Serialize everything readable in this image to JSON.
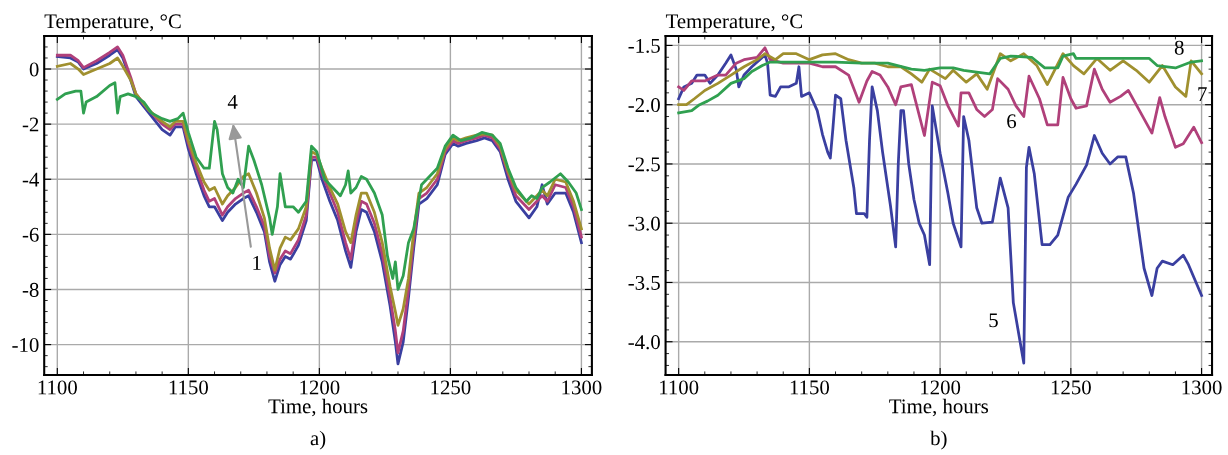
{
  "chart_data": [
    {
      "type": "line",
      "ylabel": "Temperature, °C",
      "xlabel": "Time, hours",
      "xlim": [
        1095,
        1304
      ],
      "xticks": [
        1100,
        1150,
        1200,
        1250,
        1300
      ],
      "ylim": [
        -11.1,
        1.2
      ],
      "yticks": [
        0,
        -2,
        -4,
        -6,
        -8,
        -10
      ],
      "grid": true,
      "legend": false,
      "annotations": [
        "1",
        "4",
        "a)"
      ],
      "series": [
        {
          "color": "#3a3fa0",
          "x": [
            1100,
            1105,
            1108,
            1110,
            1115,
            1120,
            1123,
            1125,
            1128,
            1130,
            1135,
            1140,
            1143,
            1145,
            1148,
            1150,
            1153,
            1156,
            1158,
            1160,
            1163,
            1165,
            1168,
            1171,
            1173,
            1176,
            1179,
            1181,
            1183,
            1185,
            1187,
            1189,
            1192,
            1195,
            1197,
            1199,
            1201,
            1204,
            1207,
            1210,
            1212,
            1214,
            1216,
            1218,
            1221,
            1224,
            1227,
            1229,
            1230,
            1232,
            1234,
            1236,
            1238,
            1241,
            1245,
            1248,
            1251,
            1253,
            1256,
            1260,
            1263,
            1266,
            1269,
            1272,
            1275,
            1280,
            1283,
            1285,
            1287,
            1290,
            1294,
            1297,
            1300
          ],
          "values": [
            0.45,
            0.4,
            0.25,
            0.0,
            0.2,
            0.5,
            0.7,
            0.4,
            -0.4,
            -1.0,
            -1.6,
            -2.2,
            -2.4,
            -2.1,
            -2.1,
            -2.9,
            -3.8,
            -4.6,
            -5.0,
            -5.0,
            -5.5,
            -5.2,
            -4.9,
            -4.7,
            -4.6,
            -5.2,
            -5.9,
            -7.0,
            -7.7,
            -7.1,
            -6.8,
            -6.9,
            -6.4,
            -5.5,
            -3.3,
            -3.3,
            -4.0,
            -4.8,
            -5.5,
            -6.6,
            -7.2,
            -5.9,
            -5.1,
            -5.2,
            -5.9,
            -7.0,
            -8.6,
            -9.9,
            -10.7,
            -9.9,
            -8.3,
            -6.5,
            -4.9,
            -4.7,
            -4.2,
            -3.1,
            -2.7,
            -2.8,
            -2.7,
            -2.6,
            -2.5,
            -2.6,
            -3.0,
            -4.0,
            -4.8,
            -5.4,
            -5.0,
            -4.2,
            -4.9,
            -4.5,
            -4.5,
            -5.2,
            -6.3
          ]
        },
        {
          "color": "#b0407a",
          "x": [
            1100,
            1105,
            1108,
            1110,
            1115,
            1120,
            1123,
            1125,
            1128,
            1130,
            1135,
            1140,
            1143,
            1145,
            1148,
            1150,
            1153,
            1156,
            1158,
            1160,
            1163,
            1165,
            1168,
            1171,
            1173,
            1176,
            1179,
            1181,
            1183,
            1185,
            1187,
            1189,
            1192,
            1195,
            1197,
            1199,
            1201,
            1204,
            1207,
            1210,
            1212,
            1214,
            1216,
            1218,
            1221,
            1224,
            1227,
            1229,
            1230,
            1232,
            1234,
            1236,
            1238,
            1241,
            1245,
            1248,
            1251,
            1253,
            1256,
            1260,
            1263,
            1266,
            1269,
            1272,
            1275,
            1280,
            1283,
            1285,
            1287,
            1290,
            1294,
            1297,
            1300
          ],
          "values": [
            0.5,
            0.5,
            0.3,
            0.05,
            0.3,
            0.6,
            0.8,
            0.5,
            -0.3,
            -0.9,
            -1.5,
            -2.0,
            -2.2,
            -2.0,
            -2.0,
            -2.7,
            -3.6,
            -4.4,
            -4.8,
            -4.7,
            -5.3,
            -5.0,
            -4.7,
            -4.5,
            -4.4,
            -5.0,
            -5.7,
            -6.8,
            -7.4,
            -6.9,
            -6.6,
            -6.7,
            -6.2,
            -5.3,
            -3.2,
            -3.2,
            -3.8,
            -4.5,
            -5.2,
            -6.3,
            -6.9,
            -5.6,
            -4.8,
            -4.9,
            -5.6,
            -6.7,
            -8.3,
            -9.5,
            -10.3,
            -9.5,
            -8.0,
            -6.2,
            -4.7,
            -4.5,
            -4.0,
            -3.0,
            -2.6,
            -2.7,
            -2.6,
            -2.5,
            -2.4,
            -2.5,
            -2.9,
            -3.8,
            -4.6,
            -5.1,
            -4.8,
            -4.6,
            -4.8,
            -4.2,
            -4.3,
            -5.0,
            -6.1
          ]
        },
        {
          "color": "#a0902f",
          "x": [
            1100,
            1105,
            1108,
            1110,
            1115,
            1120,
            1123,
            1125,
            1128,
            1130,
            1135,
            1140,
            1143,
            1145,
            1148,
            1150,
            1153,
            1156,
            1158,
            1160,
            1163,
            1165,
            1168,
            1171,
            1173,
            1176,
            1179,
            1181,
            1183,
            1185,
            1187,
            1189,
            1192,
            1195,
            1197,
            1199,
            1201,
            1204,
            1207,
            1210,
            1212,
            1214,
            1216,
            1218,
            1221,
            1224,
            1227,
            1229,
            1230,
            1232,
            1234,
            1236,
            1238,
            1241,
            1245,
            1248,
            1251,
            1253,
            1256,
            1260,
            1263,
            1266,
            1269,
            1272,
            1275,
            1280,
            1283,
            1285,
            1287,
            1290,
            1294,
            1297,
            1300
          ],
          "values": [
            0.1,
            0.2,
            0.0,
            -0.2,
            0.0,
            0.2,
            0.4,
            0.1,
            -0.4,
            -0.9,
            -1.5,
            -1.9,
            -2.1,
            -1.9,
            -1.9,
            -2.6,
            -3.4,
            -4.1,
            -4.4,
            -4.3,
            -4.9,
            -4.6,
            -4.3,
            -3.9,
            -3.8,
            -4.5,
            -5.4,
            -6.5,
            -7.3,
            -6.5,
            -6.1,
            -6.2,
            -5.8,
            -5.0,
            -3.0,
            -3.1,
            -3.6,
            -4.3,
            -4.9,
            -5.9,
            -6.3,
            -5.3,
            -4.5,
            -4.5,
            -5.2,
            -6.3,
            -7.9,
            -8.8,
            -9.3,
            -8.7,
            -7.6,
            -5.9,
            -4.5,
            -4.3,
            -3.8,
            -2.9,
            -2.5,
            -2.6,
            -2.5,
            -2.4,
            -2.35,
            -2.4,
            -2.8,
            -3.7,
            -4.4,
            -4.9,
            -4.6,
            -4.4,
            -4.6,
            -4.0,
            -4.1,
            -4.8,
            -5.8
          ]
        },
        {
          "color": "#30a050",
          "x": [
            1100,
            1103,
            1107,
            1109,
            1110,
            1111,
            1115,
            1120,
            1122,
            1123,
            1124,
            1127,
            1130,
            1133,
            1136,
            1140,
            1143,
            1146,
            1148,
            1150,
            1153,
            1156,
            1158,
            1160,
            1161,
            1163,
            1165,
            1167,
            1169,
            1171,
            1173,
            1175,
            1178,
            1181,
            1182,
            1184,
            1185,
            1187,
            1190,
            1192,
            1195,
            1197,
            1199,
            1202,
            1205,
            1208,
            1210,
            1211,
            1212,
            1214,
            1216,
            1218,
            1221,
            1224,
            1226,
            1228,
            1229,
            1230,
            1232,
            1234,
            1236,
            1239,
            1241,
            1245,
            1248,
            1251,
            1254,
            1258,
            1262,
            1266,
            1269,
            1272,
            1275,
            1279,
            1281,
            1283,
            1285,
            1288,
            1292,
            1295,
            1298,
            1300
          ],
          "values": [
            -1.1,
            -0.9,
            -0.8,
            -0.8,
            -1.6,
            -1.2,
            -1.0,
            -0.6,
            -0.5,
            -1.6,
            -1.0,
            -0.9,
            -1.0,
            -1.2,
            -1.6,
            -1.8,
            -1.9,
            -1.8,
            -1.6,
            -2.3,
            -3.2,
            -3.6,
            -3.6,
            -1.9,
            -2.2,
            -3.8,
            -4.3,
            -4.5,
            -4.0,
            -4.3,
            -2.8,
            -3.3,
            -4.2,
            -5.4,
            -6.0,
            -5.0,
            -3.8,
            -5.0,
            -5.0,
            -5.2,
            -4.8,
            -2.8,
            -3.0,
            -4.0,
            -4.3,
            -4.6,
            -4.2,
            -3.7,
            -4.5,
            -4.3,
            -3.9,
            -4.0,
            -4.5,
            -5.3,
            -6.8,
            -7.6,
            -7.0,
            -8.0,
            -7.5,
            -6.3,
            -5.8,
            -4.2,
            -4.0,
            -3.6,
            -2.8,
            -2.4,
            -2.6,
            -2.5,
            -2.3,
            -2.4,
            -2.7,
            -3.6,
            -4.3,
            -4.8,
            -4.6,
            -4.7,
            -4.3,
            -4.1,
            -3.8,
            -4.1,
            -4.5,
            -5.1
          ]
        }
      ]
    },
    {
      "type": "line",
      "ylabel": "Temperature, °C",
      "xlabel": "Time, hours",
      "xlim": [
        1095,
        1304
      ],
      "xticks": [
        1100,
        1150,
        1200,
        1250,
        1300
      ],
      "ylim": [
        -4.28,
        -1.42
      ],
      "yticks": [
        {
          "value": -1.5,
          "label": "-1.5"
        },
        {
          "value": -2.0,
          "label": "-2.0"
        },
        {
          "value": -2.5,
          "label": "-2.5"
        },
        {
          "value": -3.0,
          "label": "-3.0"
        },
        {
          "value": -3.5,
          "label": "-3.5"
        },
        {
          "value": -4.0,
          "label": "-4.0"
        }
      ],
      "grid": true,
      "legend": false,
      "annotations": [
        "5",
        "6",
        "7",
        "8",
        "b)"
      ],
      "series": [
        {
          "color": "#3a3fa0",
          "x": [
            1100,
            1102,
            1105,
            1107,
            1110,
            1112,
            1115,
            1118,
            1120,
            1122,
            1123,
            1125,
            1128,
            1131,
            1133,
            1134,
            1135,
            1137,
            1139,
            1142,
            1145,
            1146,
            1147,
            1150,
            1153,
            1155,
            1157,
            1158,
            1159,
            1160,
            1162,
            1164,
            1167,
            1168,
            1171,
            1172,
            1173,
            1174,
            1176,
            1178,
            1181,
            1183,
            1184,
            1185,
            1186,
            1188,
            1190,
            1192,
            1194,
            1196,
            1197,
            1200,
            1203,
            1205,
            1208,
            1209,
            1211,
            1214,
            1216,
            1220,
            1223,
            1226,
            1228,
            1232,
            1233,
            1234,
            1236,
            1239,
            1242,
            1245,
            1249,
            1252,
            1256,
            1259,
            1262,
            1265,
            1268,
            1271,
            1274,
            1278,
            1281,
            1283,
            1285,
            1289,
            1293,
            1295,
            1300
          ],
          "values": [
            -1.95,
            -1.85,
            -1.82,
            -1.75,
            -1.75,
            -1.82,
            -1.75,
            -1.65,
            -1.58,
            -1.7,
            -1.85,
            -1.75,
            -1.68,
            -1.62,
            -1.58,
            -1.65,
            -1.92,
            -1.93,
            -1.85,
            -1.85,
            -1.82,
            -1.68,
            -1.93,
            -1.9,
            -2.05,
            -2.25,
            -2.4,
            -2.45,
            -2.2,
            -1.92,
            -1.95,
            -2.3,
            -2.7,
            -2.92,
            -2.92,
            -2.95,
            -2.3,
            -1.85,
            -2.05,
            -2.4,
            -2.85,
            -3.2,
            -2.5,
            -2.05,
            -2.05,
            -2.5,
            -2.8,
            -3.0,
            -3.1,
            -3.35,
            -2.01,
            -2.41,
            -2.75,
            -3.0,
            -3.2,
            -2.1,
            -2.3,
            -2.87,
            -3.0,
            -2.99,
            -2.62,
            -2.87,
            -3.67,
            -4.18,
            -2.53,
            -2.36,
            -2.58,
            -3.18,
            -3.18,
            -3.1,
            -2.78,
            -2.67,
            -2.51,
            -2.26,
            -2.41,
            -2.5,
            -2.44,
            -2.44,
            -2.75,
            -3.38,
            -3.61,
            -3.38,
            -3.32,
            -3.35,
            -3.27,
            -3.35,
            -3.61
          ]
        },
        {
          "color": "#b0407a",
          "x": [
            1100,
            1102,
            1105,
            1110,
            1115,
            1118,
            1122,
            1125,
            1130,
            1133,
            1135,
            1140,
            1145,
            1150,
            1155,
            1160,
            1165,
            1169,
            1172,
            1174,
            1177,
            1180,
            1183,
            1185,
            1189,
            1194,
            1197,
            1200,
            1203,
            1207,
            1208,
            1211,
            1214,
            1217,
            1220,
            1222,
            1226,
            1229,
            1232,
            1234,
            1238,
            1241,
            1245,
            1247,
            1250,
            1252,
            1256,
            1259,
            1262,
            1265,
            1269,
            1272,
            1276,
            1281,
            1284,
            1286,
            1290,
            1293,
            1297,
            1300
          ],
          "values": [
            -1.85,
            -1.88,
            -1.8,
            -1.8,
            -1.75,
            -1.75,
            -1.65,
            -1.62,
            -1.6,
            -1.52,
            -1.62,
            -1.65,
            -1.65,
            -1.65,
            -1.68,
            -1.68,
            -1.75,
            -1.98,
            -1.8,
            -1.72,
            -1.75,
            -1.85,
            -2.0,
            -1.85,
            -1.83,
            -2.26,
            -1.81,
            -1.84,
            -2.01,
            -2.18,
            -1.9,
            -1.9,
            -2.04,
            -2.1,
            -2.04,
            -1.78,
            -1.87,
            -2.01,
            -2.1,
            -1.76,
            -1.95,
            -2.17,
            -2.17,
            -1.77,
            -1.95,
            -2.03,
            -2.01,
            -1.7,
            -1.87,
            -1.98,
            -1.93,
            -1.88,
            -2.04,
            -2.24,
            -1.94,
            -2.1,
            -2.36,
            -2.33,
            -2.19,
            -2.32
          ]
        },
        {
          "color": "#a0902f",
          "x": [
            1100,
            1103,
            1106,
            1110,
            1115,
            1120,
            1125,
            1130,
            1133,
            1137,
            1140,
            1145,
            1150,
            1155,
            1160,
            1165,
            1170,
            1175,
            1180,
            1185,
            1189,
            1193,
            1196,
            1202,
            1205,
            1210,
            1214,
            1218,
            1223,
            1227,
            1232,
            1237,
            1241,
            1247,
            1251,
            1255,
            1260,
            1265,
            1270,
            1275,
            1280,
            1285,
            1290,
            1294,
            1296,
            1300
          ],
          "values": [
            -2.0,
            -2.0,
            -1.95,
            -1.88,
            -1.82,
            -1.75,
            -1.68,
            -1.62,
            -1.57,
            -1.62,
            -1.57,
            -1.57,
            -1.62,
            -1.58,
            -1.57,
            -1.62,
            -1.65,
            -1.65,
            -1.68,
            -1.68,
            -1.74,
            -1.81,
            -1.7,
            -1.78,
            -1.71,
            -1.81,
            -1.74,
            -1.87,
            -1.57,
            -1.63,
            -1.57,
            -1.67,
            -1.83,
            -1.57,
            -1.67,
            -1.74,
            -1.61,
            -1.71,
            -1.63,
            -1.71,
            -1.81,
            -1.67,
            -1.85,
            -1.93,
            -1.63,
            -1.74
          ]
        },
        {
          "color": "#30a050",
          "x": [
            1100,
            1105,
            1108,
            1111,
            1115,
            1120,
            1125,
            1128,
            1132,
            1135,
            1140,
            1150,
            1160,
            1170,
            1180,
            1189,
            1194,
            1200,
            1205,
            1209,
            1219,
            1223,
            1227,
            1235,
            1240,
            1245,
            1247,
            1251,
            1252,
            1265,
            1280,
            1283,
            1290,
            1296,
            1300
          ],
          "values": [
            -2.07,
            -2.05,
            -2.0,
            -1.97,
            -1.92,
            -1.82,
            -1.78,
            -1.72,
            -1.67,
            -1.64,
            -1.64,
            -1.64,
            -1.64,
            -1.65,
            -1.65,
            -1.7,
            -1.71,
            -1.69,
            -1.69,
            -1.71,
            -1.74,
            -1.61,
            -1.59,
            -1.6,
            -1.69,
            -1.69,
            -1.59,
            -1.57,
            -1.61,
            -1.61,
            -1.61,
            -1.67,
            -1.69,
            -1.64,
            -1.63
          ]
        }
      ]
    }
  ]
}
